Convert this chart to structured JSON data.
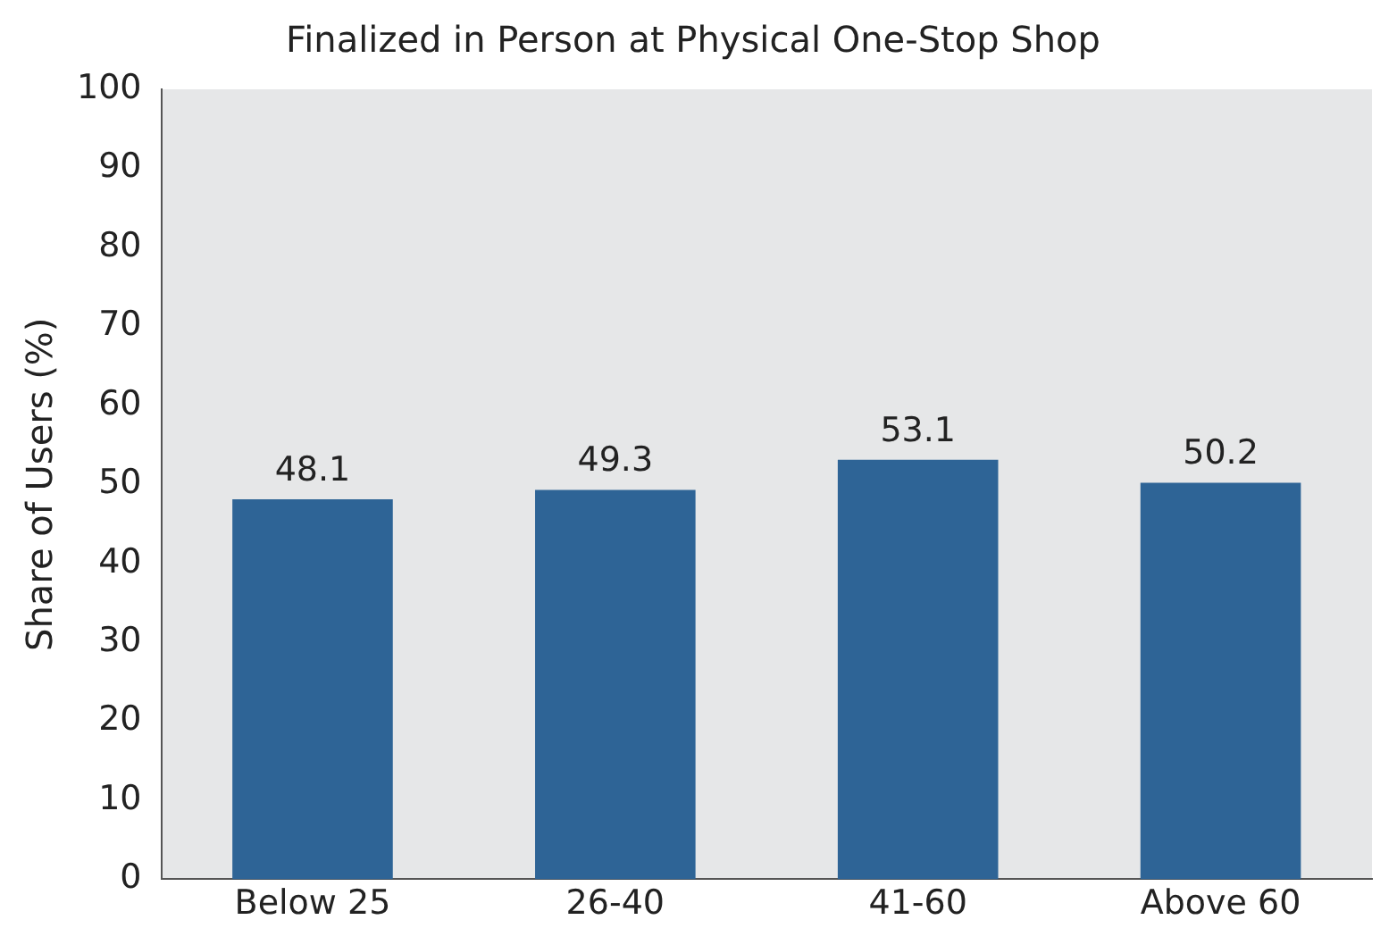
{
  "chart_data": {
    "type": "bar",
    "title": "Finalized in Person at Physical One-Stop Shop",
    "ylabel": "Share of Users (%)",
    "categories": [
      "Below 25",
      "26-40",
      "41-60",
      "Above 60"
    ],
    "values": [
      48.1,
      49.3,
      53.1,
      50.2
    ],
    "color": "#2e6496",
    "ylim": [
      0,
      100
    ],
    "yticks": [
      0,
      10,
      20,
      30,
      40,
      50,
      60,
      70,
      80,
      90,
      100
    ],
    "grid": false,
    "legend": false,
    "data_labels": true
  }
}
